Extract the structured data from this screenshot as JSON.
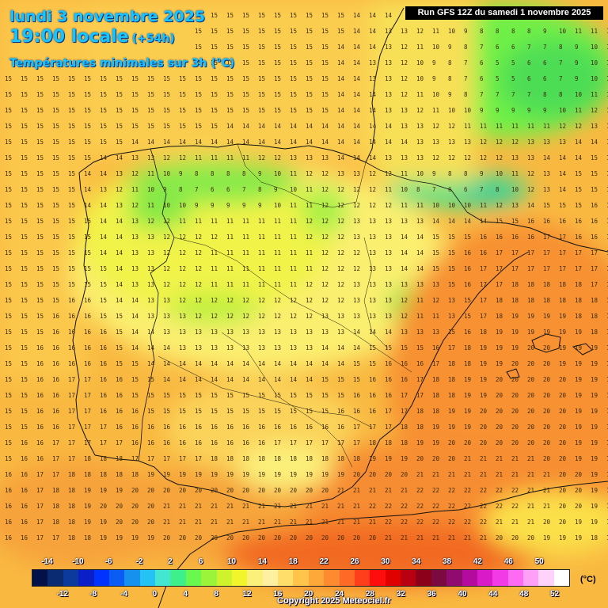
{
  "header": {
    "date": "lundi 3 novembre 2025",
    "time": "19:00 locale",
    "lead": "(+54h)",
    "variable": "Températures minimales sur 3h (°C)",
    "run": "Run GFS 12Z du samedi 1 novembre 2025"
  },
  "legend": {
    "unit": "(°C)",
    "top_labels": [
      "-14",
      "-10",
      "-6",
      "-2",
      "2",
      "6",
      "10",
      "14",
      "18",
      "22",
      "26",
      "30",
      "34",
      "38",
      "42",
      "46",
      "50"
    ],
    "bottom_labels": [
      "-12",
      "-8",
      "-4",
      "0",
      "4",
      "8",
      "12",
      "16",
      "20",
      "24",
      "28",
      "32",
      "36",
      "40",
      "44",
      "48",
      "52"
    ],
    "colors": [
      "#021147",
      "#0a2a72",
      "#0a3a9c",
      "#0a1fc8",
      "#0033ff",
      "#0a5cf5",
      "#1692ee",
      "#25c3f3",
      "#43e6d1",
      "#3df08a",
      "#68f84e",
      "#9cf43a",
      "#cef22c",
      "#f2f52c",
      "#fbf07a",
      "#fff0a0",
      "#ffdf6a",
      "#ffc44a",
      "#ffa83a",
      "#ff8a30",
      "#ff6a26",
      "#ff3e1c",
      "#ff0c0c",
      "#e00000",
      "#b80010",
      "#8c0018",
      "#7a0a40",
      "#900a70",
      "#b40a9e",
      "#d81ac8",
      "#f23ae6",
      "#ff6af2",
      "#ffa0f8",
      "#ffd2fb",
      "#ffffff"
    ]
  },
  "footer": {
    "copyright": "Copyright 2025 Meteociel.fr"
  }
}
